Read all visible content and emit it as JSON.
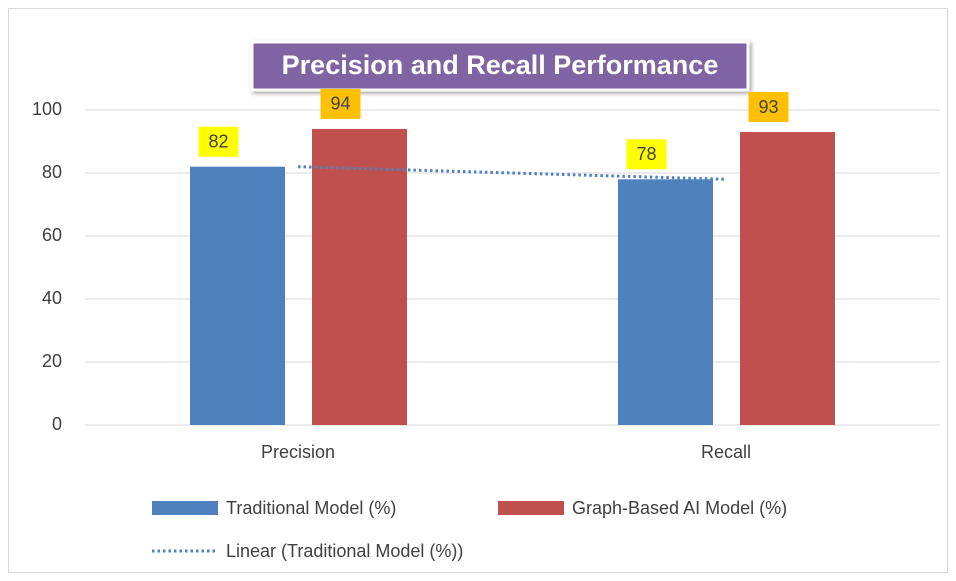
{
  "chart_data": {
    "type": "bar",
    "title": "Precision and Recall Performance",
    "categories": [
      "Precision",
      "Recall"
    ],
    "series": [
      {
        "name": "Traditional Model (%)",
        "color": "#4f81bd",
        "label_color": "#ffff00",
        "values": [
          82,
          78
        ]
      },
      {
        "name": "Graph-Based AI Model (%)",
        "color": "#c0504d",
        "label_color": "#ffc000",
        "values": [
          94,
          93
        ]
      }
    ],
    "trendline": {
      "name": "Linear (Traditional Model (%))",
      "color": "#4f81bd",
      "style": "dotted",
      "values": [
        82,
        78
      ]
    },
    "ylim": [
      0,
      100
    ],
    "yticks": [
      0,
      20,
      40,
      60,
      80,
      100
    ],
    "grid": true,
    "legend": "bottom"
  }
}
